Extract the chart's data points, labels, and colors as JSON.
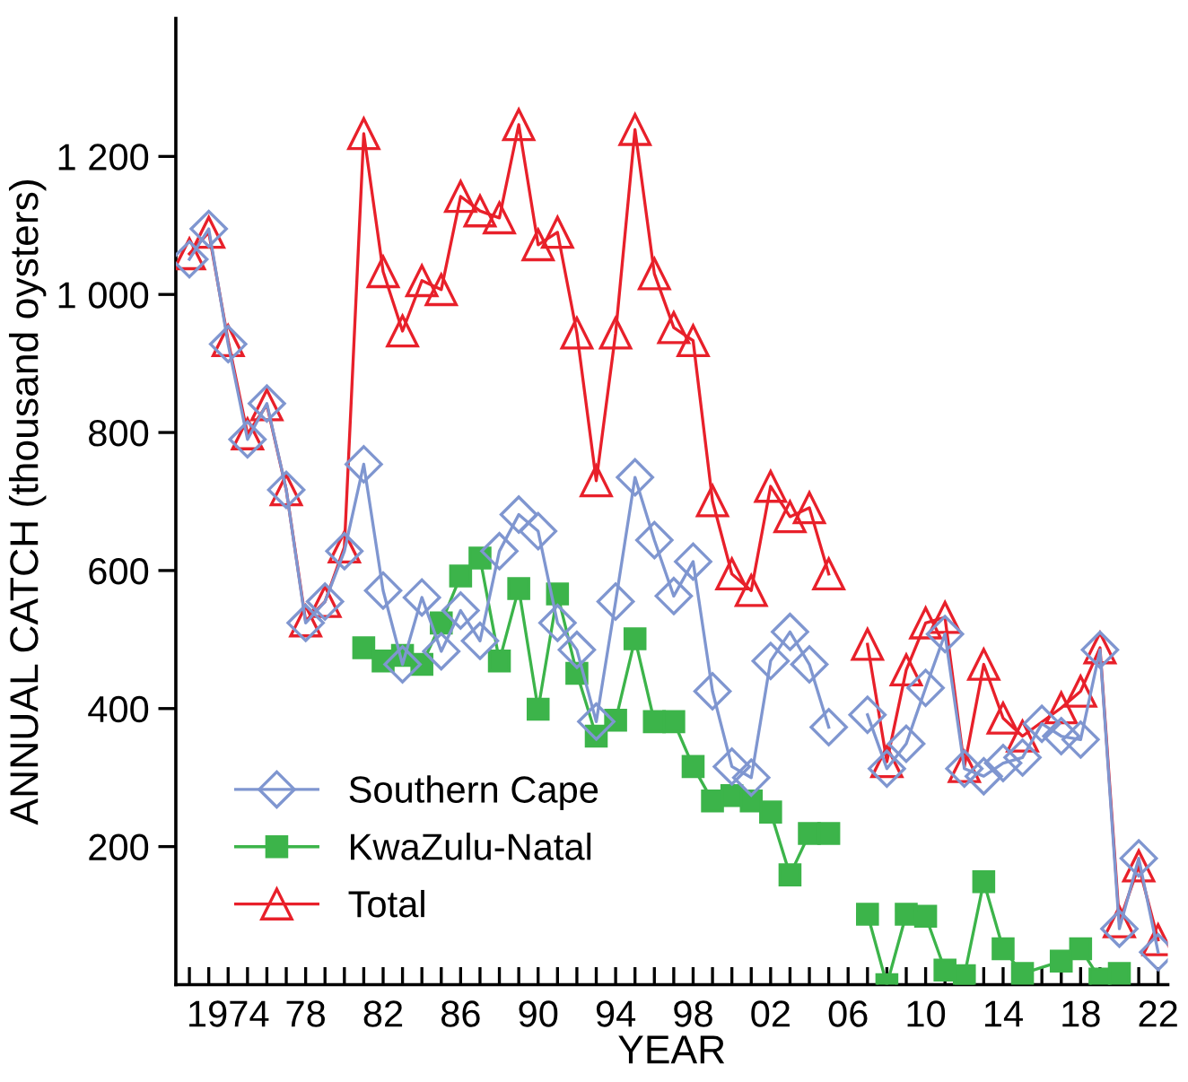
{
  "chart_data": {
    "type": "line",
    "xlabel": "YEAR",
    "ylabel": "ANNUAL CATCH (thousand oysters)",
    "xlim": [
      1971.3,
      2022.5
    ],
    "ylim": [
      0,
      1400
    ],
    "xticks": [
      {
        "value": 1972,
        "label": null
      },
      {
        "value": 1973,
        "label": null
      },
      {
        "value": 1974,
        "label": "1974"
      },
      {
        "value": 1975,
        "label": null
      },
      {
        "value": 1976,
        "label": null
      },
      {
        "value": 1977,
        "label": null
      },
      {
        "value": 1978,
        "label": "78"
      },
      {
        "value": 1979,
        "label": null
      },
      {
        "value": 1980,
        "label": null
      },
      {
        "value": 1981,
        "label": null
      },
      {
        "value": 1982,
        "label": "82"
      },
      {
        "value": 1983,
        "label": null
      },
      {
        "value": 1984,
        "label": null
      },
      {
        "value": 1985,
        "label": null
      },
      {
        "value": 1986,
        "label": "86"
      },
      {
        "value": 1987,
        "label": null
      },
      {
        "value": 1988,
        "label": null
      },
      {
        "value": 1989,
        "label": null
      },
      {
        "value": 1990,
        "label": "90"
      },
      {
        "value": 1991,
        "label": null
      },
      {
        "value": 1992,
        "label": null
      },
      {
        "value": 1993,
        "label": null
      },
      {
        "value": 1994,
        "label": "94"
      },
      {
        "value": 1995,
        "label": null
      },
      {
        "value": 1996,
        "label": null
      },
      {
        "value": 1997,
        "label": null
      },
      {
        "value": 1998,
        "label": "98"
      },
      {
        "value": 1999,
        "label": null
      },
      {
        "value": 2000,
        "label": null
      },
      {
        "value": 2001,
        "label": null
      },
      {
        "value": 2002,
        "label": "02"
      },
      {
        "value": 2003,
        "label": null
      },
      {
        "value": 2004,
        "label": null
      },
      {
        "value": 2005,
        "label": null
      },
      {
        "value": 2006,
        "label": "06"
      },
      {
        "value": 2007,
        "label": null
      },
      {
        "value": 2008,
        "label": null
      },
      {
        "value": 2009,
        "label": null
      },
      {
        "value": 2010,
        "label": "10"
      },
      {
        "value": 2011,
        "label": null
      },
      {
        "value": 2012,
        "label": null
      },
      {
        "value": 2013,
        "label": null
      },
      {
        "value": 2014,
        "label": "14"
      },
      {
        "value": 2015,
        "label": null
      },
      {
        "value": 2016,
        "label": null
      },
      {
        "value": 2017,
        "label": null
      },
      {
        "value": 2018,
        "label": "18"
      },
      {
        "value": 2019,
        "label": null
      },
      {
        "value": 2020,
        "label": null
      },
      {
        "value": 2021,
        "label": null
      },
      {
        "value": 2022,
        "label": "22"
      }
    ],
    "yticks": [
      200,
      400,
      600,
      800,
      {
        "value": 1000,
        "label": "1 000"
      },
      {
        "value": 1200,
        "label": "1 200"
      }
    ],
    "grid": false,
    "legend": "bottom left",
    "line_style": "solid",
    "series": [
      {
        "name": "Southern Cape",
        "color": "#7f96d0",
        "marker": "diamond",
        "x": [
          1972,
          1973,
          1974,
          1975,
          1976,
          1977,
          1978,
          1979,
          1980,
          1981,
          1982,
          1983,
          1984,
          1985,
          1986,
          1987,
          1988,
          1989,
          1990,
          1991,
          1992,
          1993,
          1994,
          1995,
          1996,
          1997,
          1998,
          1999,
          2000,
          2001,
          2002,
          2003,
          2004,
          2005,
          2006,
          2007,
          2008,
          2009,
          2010,
          2011,
          2012,
          2013,
          2014,
          2015,
          2016,
          2017,
          2018,
          2019,
          2020,
          2021,
          2022
        ],
        "values": [
          1051,
          1095,
          928,
          790,
          842,
          717,
          524,
          555,
          628,
          754,
          571,
          464,
          561,
          483,
          542,
          498,
          628,
          681,
          657,
          524,
          485,
          381,
          555,
          735,
          644,
          563,
          613,
          425,
          316,
          300,
          469,
          511,
          464,
          373,
          null,
          391,
          313,
          349,
          430,
          508,
          313,
          302,
          321,
          329,
          378,
          360,
          355,
          485,
          81,
          183,
          47
        ]
      },
      {
        "name": "KwaZulu-Natal",
        "color": "#3cb44a",
        "marker": "square",
        "x": [
          1981,
          1982,
          1983,
          1984,
          1985,
          1986,
          1987,
          1988,
          1989,
          1990,
          1991,
          1992,
          1993,
          1994,
          1995,
          1996,
          1997,
          1998,
          1999,
          2000,
          2001,
          2002,
          2003,
          2004,
          2005,
          2006,
          2007,
          2008,
          2009,
          2010,
          2011,
          2012,
          2013,
          2014,
          2015,
          2017,
          2018,
          2019,
          2020
        ],
        "values": [
          488,
          469,
          477,
          464,
          524,
          592,
          618,
          469,
          574,
          399,
          566,
          451,
          360,
          383,
          501,
          381,
          381,
          316,
          266,
          274,
          266,
          250,
          159,
          219,
          219,
          null,
          102,
          0,
          102,
          99,
          21,
          13,
          149,
          52,
          16,
          34,
          52,
          8,
          16
        ]
      },
      {
        "name": "Total",
        "color": "#e8202a",
        "marker": "triangle",
        "x": [
          1972,
          1973,
          1974,
          1975,
          1976,
          1977,
          1978,
          1979,
          1980,
          1981,
          1982,
          1983,
          1984,
          1985,
          1986,
          1987,
          1988,
          1989,
          1990,
          1991,
          1992,
          1993,
          1994,
          1995,
          1996,
          1997,
          1998,
          1999,
          2000,
          2001,
          2002,
          2003,
          2004,
          2005,
          2006,
          2007,
          2008,
          2009,
          2010,
          2011,
          2012,
          2013,
          2014,
          2015,
          2017,
          2018,
          2019,
          2020,
          2021,
          2022
        ],
        "values": [
          1059,
          1090,
          933,
          798,
          840,
          717,
          527,
          555,
          634,
          1233,
          1033,
          947,
          1020,
          1007,
          1142,
          1121,
          1111,
          1246,
          1072,
          1090,
          944,
          730,
          944,
          1239,
          1030,
          952,
          933,
          701,
          595,
          571,
          722,
          678,
          691,
          595,
          null,
          493,
          323,
          456,
          524,
          532,
          316,
          464,
          386,
          360,
          401,
          425,
          488,
          91,
          172,
          65
        ]
      }
    ]
  }
}
